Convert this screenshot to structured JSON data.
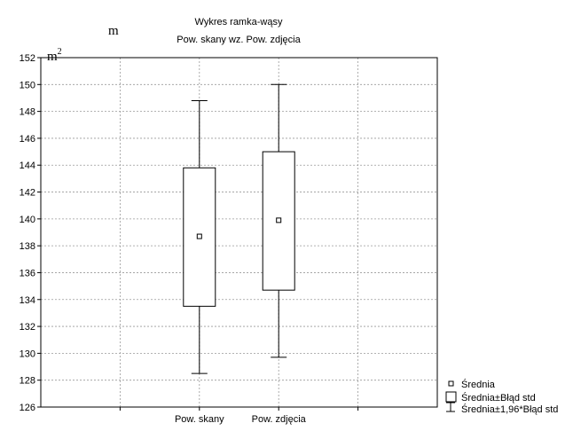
{
  "chart_data": {
    "type": "boxplot",
    "title": "Wykres ramka-wąsy",
    "subtitle": "Pow. skany wz. Pow. zdjęcia",
    "ylabel_top": "m",
    "ylabel_bottom": "m",
    "ylabel_exponent": "2",
    "ylim": [
      126,
      152
    ],
    "yticks": [
      126,
      128,
      130,
      132,
      134,
      136,
      138,
      140,
      142,
      144,
      146,
      148,
      150,
      152
    ],
    "grid": true,
    "legend_position": "bottom-right",
    "categories": [
      "Pow. skany",
      "Pow. zdjęcia"
    ],
    "series": [
      {
        "category": "Pow. skany",
        "mean": 138.7,
        "box_low": 133.5,
        "box_high": 143.8,
        "whisker_low": 128.5,
        "whisker_high": 148.8
      },
      {
        "category": "Pow. zdjęcia",
        "mean": 139.9,
        "box_low": 134.7,
        "box_high": 145.0,
        "whisker_low": 129.7,
        "whisker_high": 150.0
      }
    ],
    "legend": [
      "Średnia",
      "Średnia±Błąd std",
      "Średnia±1,96*Błąd std"
    ]
  }
}
